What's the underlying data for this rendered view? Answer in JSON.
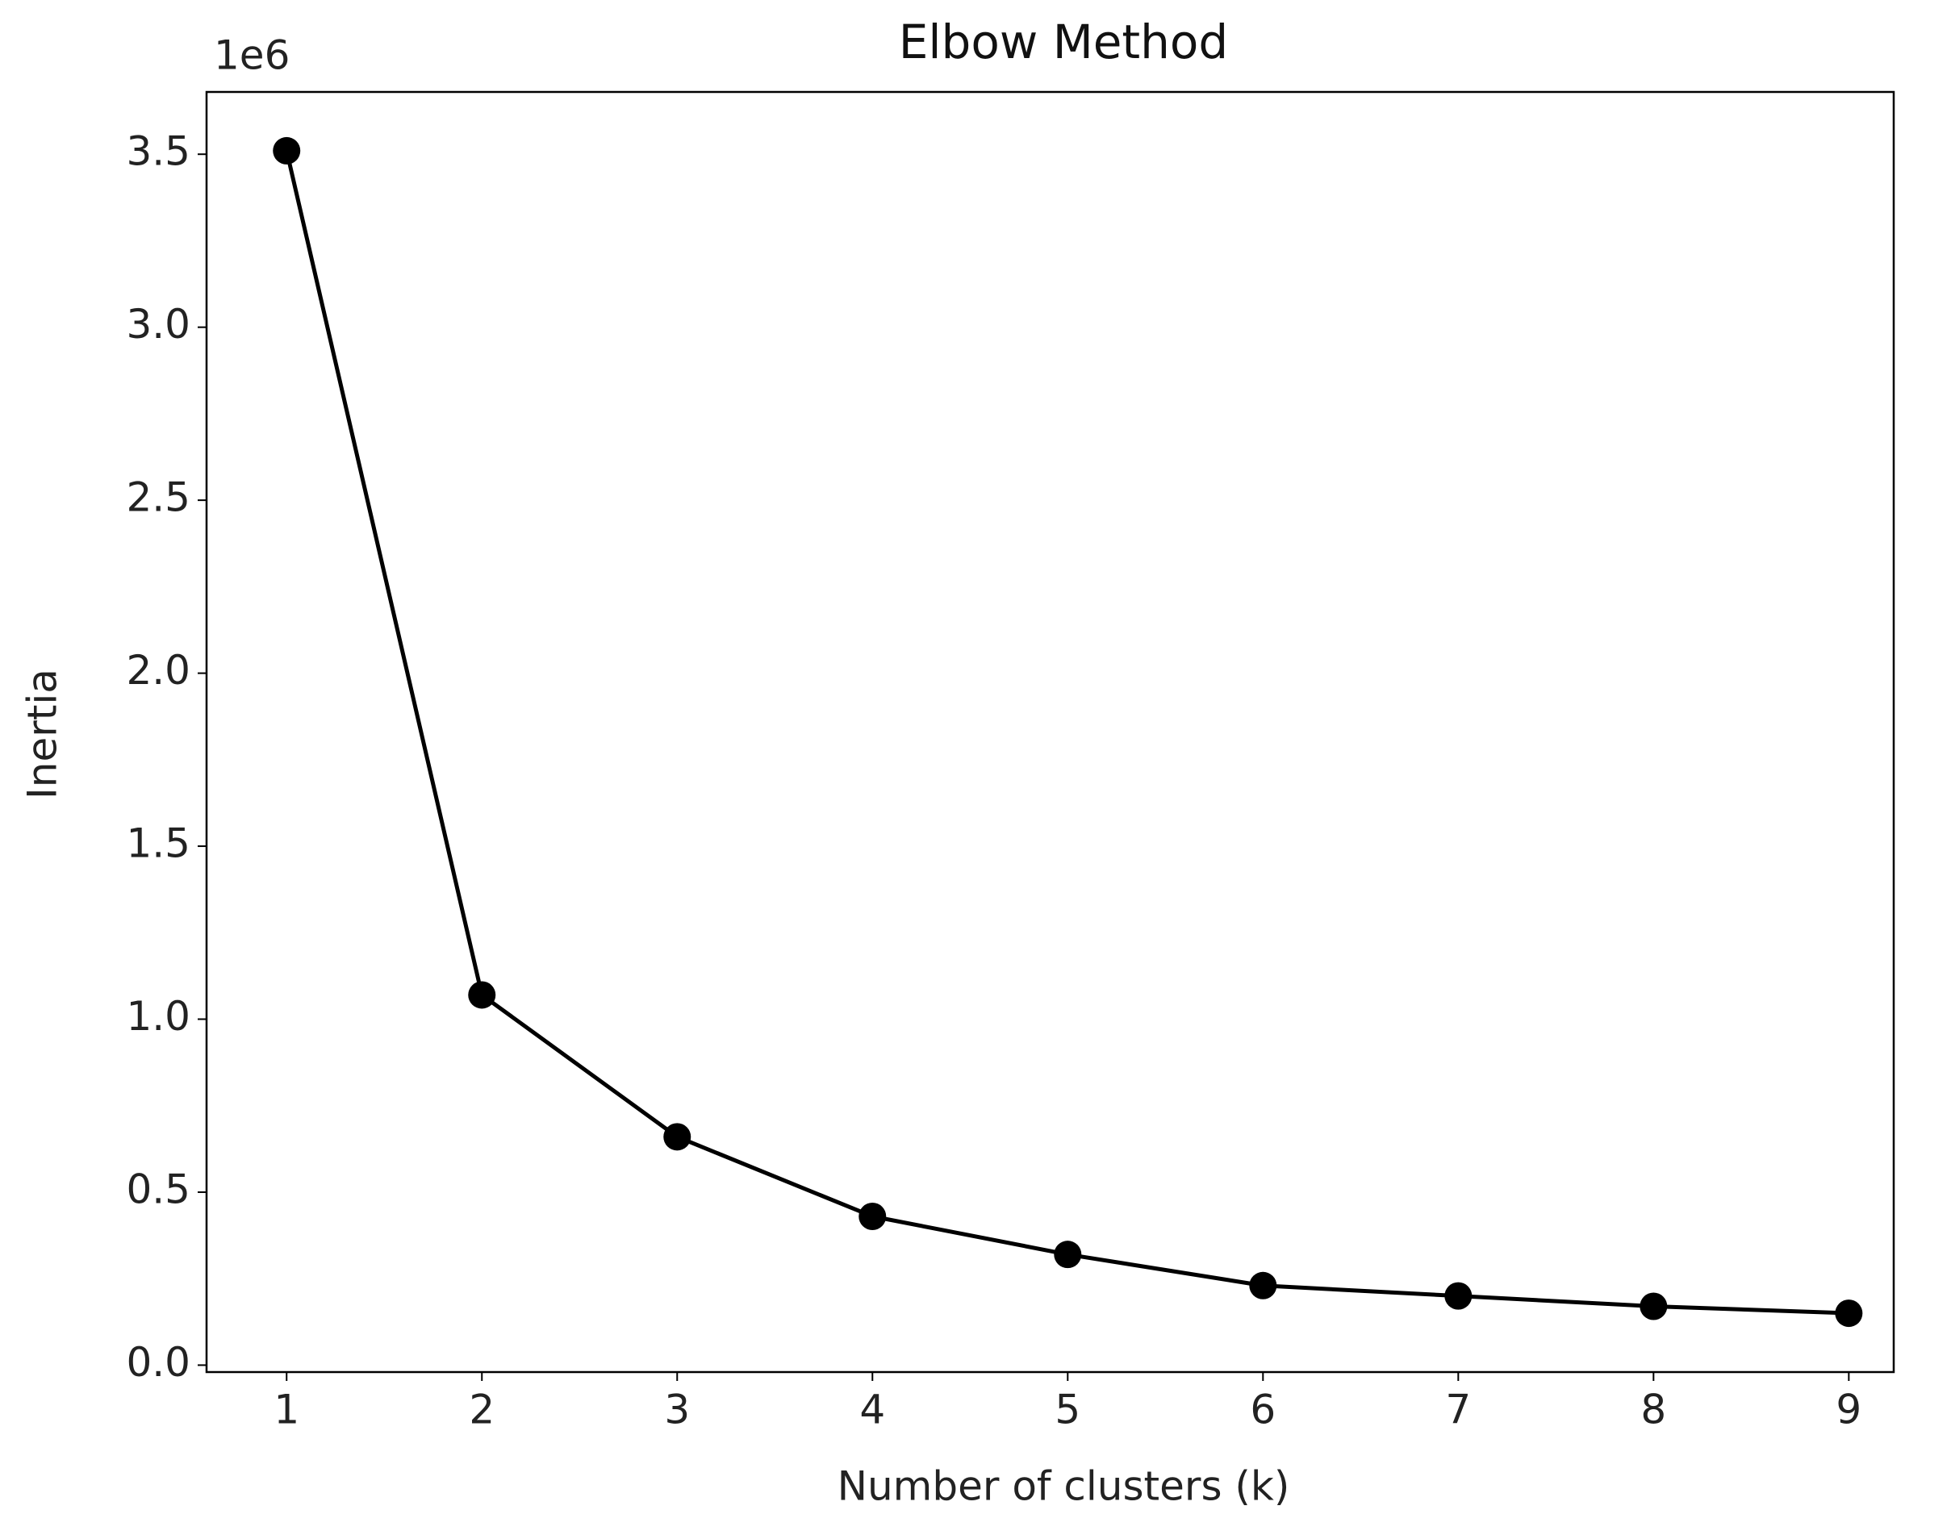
{
  "chart_data": {
    "type": "line",
    "title": "Elbow Method",
    "x_label": "Number of clusters (k)",
    "y_label": "Inertia",
    "y_offset_label": "1e6",
    "x": [
      1,
      2,
      3,
      4,
      5,
      6,
      7,
      8,
      9
    ],
    "series": [
      {
        "color": "#000000",
        "values": [
          3.51,
          1.07,
          0.66,
          0.43,
          0.32,
          0.23,
          0.2,
          0.17,
          0.15
        ]
      }
    ],
    "xlim": [
      0.59,
      9.23
    ],
    "ylim": [
      -0.02,
      3.68
    ],
    "xticks": [
      1,
      2,
      3,
      4,
      5,
      6,
      7,
      8,
      9
    ],
    "yticks": [
      {
        "value": 0,
        "label": "0.0"
      },
      0.5,
      {
        "value": 1,
        "label": "1.0"
      },
      1.5,
      {
        "value": 2,
        "label": "2.0"
      },
      2.5,
      {
        "value": 3,
        "label": "3.0"
      },
      3.5
    ],
    "grid": false,
    "markers": true
  }
}
